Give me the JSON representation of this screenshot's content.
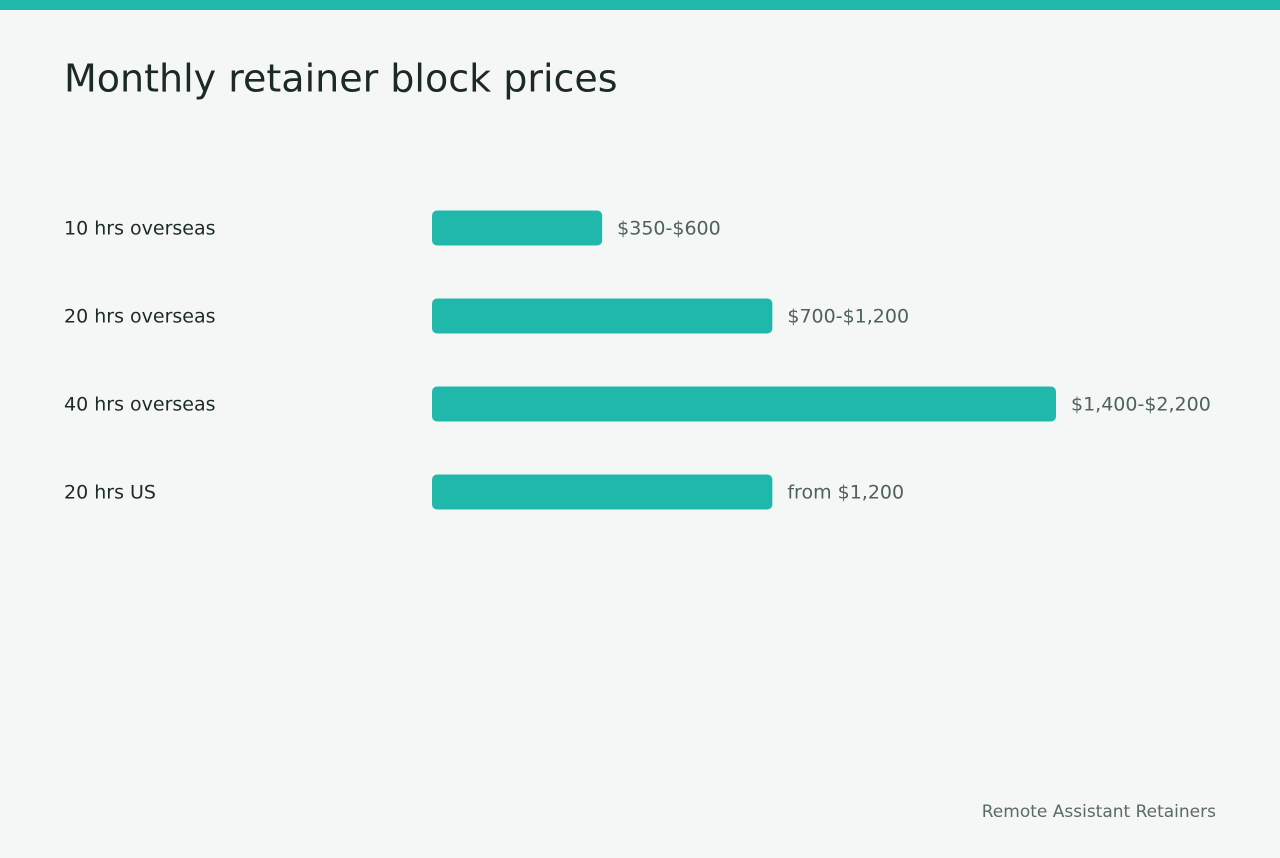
{
  "chart_data": {
    "type": "bar",
    "orientation": "horizontal",
    "title": "Monthly retainer block prices",
    "categories": [
      "10 hrs overseas",
      "20 hrs overseas",
      "40 hrs overseas",
      "20 hrs US"
    ],
    "values": [
      600,
      1200,
      2200,
      1200
    ],
    "value_labels": [
      "$350-$600",
      "$700-$1,200",
      "$1,400-$2,200",
      "from $1,200"
    ],
    "color": "#20b8ab",
    "source": "Remote Assistant Retainers"
  }
}
